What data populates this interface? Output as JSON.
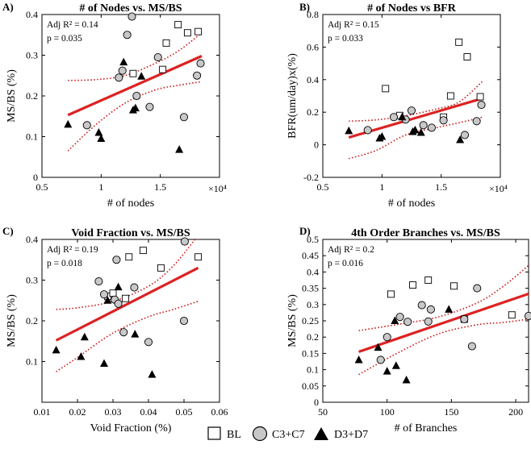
{
  "legend": {
    "items": [
      {
        "key": "BL",
        "label": "BL",
        "shape": "square",
        "fill": "#ffffff"
      },
      {
        "key": "C3C7",
        "label": "C3+C7",
        "shape": "circle",
        "fill": "#c8c8c8"
      },
      {
        "key": "D3D7",
        "label": "D3+D7",
        "shape": "triangle",
        "fill": "#000000"
      }
    ]
  },
  "colors": {
    "fit": "#dd2222",
    "ci": "#cc1111",
    "axis": "#000000"
  },
  "chart_data": [
    {
      "id": "A",
      "letter": "A)",
      "type": "scatter",
      "title": "# of Nodes vs. MS/BS",
      "xlabel": "# of nodes",
      "ylabel": "MS/BS (%)",
      "x_multiplier": "×10⁴",
      "xlim": [
        0.5,
        2.0
      ],
      "ylim": [
        0.0,
        0.4
      ],
      "xticks": [
        0.5,
        1.0,
        1.5
      ],
      "xtick_labels": [
        "0.5",
        "1",
        "1.5"
      ],
      "yticks": [
        0.0,
        0.1,
        0.2,
        0.3,
        0.4
      ],
      "ytick_labels": [
        "0",
        "0.1",
        "0.2",
        "0.3",
        "0.4"
      ],
      "stats": {
        "r2": "Adj R² = 0.14",
        "p": "p = 0.035"
      },
      "fit": {
        "x": [
          0.72,
          1.85
        ],
        "y": [
          0.153,
          0.298
        ]
      },
      "ci_upper": {
        "x": [
          0.72,
          0.95,
          1.2,
          1.45,
          1.65,
          1.85
        ],
        "y": [
          0.238,
          0.24,
          0.25,
          0.279,
          0.31,
          0.355
        ]
      },
      "ci_lower": {
        "x": [
          0.72,
          0.95,
          1.2,
          1.45,
          1.65,
          1.85
        ],
        "y": [
          0.065,
          0.128,
          0.182,
          0.214,
          0.226,
          0.235
        ]
      },
      "series": [
        {
          "name": "BL",
          "x": [
            1.27,
            1.52,
            1.55,
            1.65,
            1.73,
            1.82
          ],
          "y": [
            0.255,
            0.265,
            0.33,
            0.375,
            0.355,
            0.358
          ]
        },
        {
          "name": "C3+C7",
          "x": [
            0.88,
            1.15,
            1.18,
            1.22,
            1.26,
            1.3,
            1.41,
            1.48,
            1.7,
            1.81,
            1.84
          ],
          "y": [
            0.128,
            0.245,
            0.262,
            0.35,
            0.395,
            0.2,
            0.173,
            0.295,
            0.148,
            0.25,
            0.28
          ]
        },
        {
          "name": "D3+D7",
          "x": [
            0.72,
            0.98,
            1.0,
            1.19,
            1.27,
            1.29,
            1.34,
            1.66
          ],
          "y": [
            0.13,
            0.11,
            0.095,
            0.283,
            0.165,
            0.17,
            0.248,
            0.068
          ]
        }
      ]
    },
    {
      "id": "B",
      "letter": "B)",
      "type": "scatter",
      "title": "# of Nodes vs BFR",
      "xlabel": "# of nodes",
      "ylabel": "BFR(um/day)x(%)",
      "x_multiplier": "×10⁴",
      "xlim": [
        0.5,
        2.0
      ],
      "ylim": [
        -0.2,
        0.8
      ],
      "xticks": [
        0.5,
        1.0,
        1.5
      ],
      "xtick_labels": [
        "0.5",
        "1",
        "1.5"
      ],
      "yticks": [
        -0.2,
        0.0,
        0.2,
        0.4,
        0.6,
        0.8
      ],
      "ytick_labels": [
        "-0.2",
        "0",
        "0.2",
        "0.4",
        "0.6",
        "0.8"
      ],
      "stats": {
        "r2": "Adj R² = 0.15",
        "p": "p = 0.033"
      },
      "fit": {
        "x": [
          0.72,
          1.85
        ],
        "y": [
          0.045,
          0.285
        ]
      },
      "ci_upper": {
        "x": [
          0.72,
          0.95,
          1.2,
          1.45,
          1.65,
          1.85
        ],
        "y": [
          0.145,
          0.153,
          0.178,
          0.218,
          0.262,
          0.39
        ]
      },
      "ci_lower": {
        "x": [
          0.72,
          0.95,
          1.2,
          1.45,
          1.65,
          1.85
        ],
        "y": [
          -0.085,
          -0.035,
          0.06,
          0.104,
          0.135,
          0.17
        ]
      },
      "series": [
        {
          "name": "BL",
          "x": [
            1.03,
            1.15,
            1.52,
            1.58,
            1.65,
            1.72,
            1.83
          ],
          "y": [
            0.345,
            0.18,
            0.17,
            0.3,
            0.63,
            0.54,
            0.295
          ]
        },
        {
          "name": "C3+C7",
          "x": [
            0.88,
            1.1,
            1.2,
            1.25,
            1.35,
            1.42,
            1.52,
            1.7,
            1.8,
            1.84
          ],
          "y": [
            0.09,
            0.17,
            0.155,
            0.21,
            0.12,
            0.105,
            0.15,
            0.06,
            0.145,
            0.245
          ]
        },
        {
          "name": "D3+D7",
          "x": [
            0.72,
            0.98,
            1.0,
            1.17,
            1.26,
            1.28,
            1.33,
            1.66
          ],
          "y": [
            0.085,
            0.04,
            0.05,
            0.17,
            0.08,
            0.09,
            0.075,
            0.03
          ]
        }
      ]
    },
    {
      "id": "C",
      "letter": "C)",
      "type": "scatter",
      "title": "Void Fraction vs. MS/BS",
      "xlabel": "Void Fraction (%)",
      "ylabel": "MS/BS (%)",
      "x_multiplier": "",
      "xlim": [
        0.01,
        0.06
      ],
      "ylim": [
        0.0,
        0.4
      ],
      "xticks": [
        0.01,
        0.02,
        0.03,
        0.04,
        0.05,
        0.06
      ],
      "xtick_labels": [
        "0.01",
        "0.02",
        "0.03",
        "0.04",
        "0.05",
        "0.06"
      ],
      "yticks": [
        0.1,
        0.2,
        0.3,
        0.4
      ],
      "ytick_labels": [
        "0.1",
        "0.2",
        "0.3",
        "0.4"
      ],
      "stats": {
        "r2": "Adj R² = 0.19",
        "p": "p = 0.018"
      },
      "fit": {
        "x": [
          0.014,
          0.054
        ],
        "y": [
          0.152,
          0.33
        ]
      },
      "ci_upper": {
        "x": [
          0.014,
          0.02,
          0.03,
          0.04,
          0.047,
          0.054
        ],
        "y": [
          0.228,
          0.232,
          0.248,
          0.285,
          0.335,
          0.41
        ]
      },
      "ci_lower": {
        "x": [
          0.014,
          0.02,
          0.03,
          0.04,
          0.047,
          0.054
        ],
        "y": [
          0.075,
          0.11,
          0.17,
          0.21,
          0.228,
          0.248
        ]
      },
      "series": [
        {
          "name": "BL",
          "x": [
            0.0285,
            0.03,
            0.0335,
            0.0345,
            0.0385,
            0.0435,
            0.054
          ],
          "y": [
            0.26,
            0.268,
            0.255,
            0.357,
            0.373,
            0.33,
            0.357
          ]
        },
        {
          "name": "C3+C7",
          "x": [
            0.026,
            0.0275,
            0.0305,
            0.031,
            0.0315,
            0.033,
            0.036,
            0.04,
            0.05,
            0.0502
          ],
          "y": [
            0.297,
            0.265,
            0.252,
            0.35,
            0.242,
            0.172,
            0.282,
            0.148,
            0.2,
            0.395
          ]
        },
        {
          "name": "D3+D7",
          "x": [
            0.014,
            0.021,
            0.022,
            0.0275,
            0.0285,
            0.0315,
            0.0362,
            0.041
          ],
          "y": [
            0.128,
            0.112,
            0.16,
            0.095,
            0.25,
            0.283,
            0.167,
            0.068
          ]
        }
      ]
    },
    {
      "id": "D",
      "letter": "D)",
      "type": "scatter",
      "title": "4th Order Branches vs. MS/BS",
      "xlabel": "# of Branches",
      "ylabel": "MS/BS (%)",
      "x_multiplier": "",
      "xlim": [
        50,
        210
      ],
      "ylim": [
        0.0,
        0.5
      ],
      "xticks": [
        50,
        100,
        150,
        200
      ],
      "xtick_labels": [
        "50",
        "100",
        "150",
        "200"
      ],
      "yticks": [
        0.0,
        0.05,
        0.1,
        0.15,
        0.2,
        0.25,
        0.3,
        0.35,
        0.4,
        0.45,
        0.5
      ],
      "ytick_labels": [
        "0",
        "0.05",
        "0.1",
        "0.15",
        "0.2",
        "0.25",
        "0.3",
        "0.35",
        "0.4",
        "0.45",
        "0.5"
      ],
      "stats": {
        "r2": "Adj R² = 0.2",
        "p": "p = 0.016"
      },
      "fit": {
        "x": [
          78,
          210
        ],
        "y": [
          0.155,
          0.333
        ]
      },
      "ci_upper": {
        "x": [
          78,
          110,
          140,
          170,
          190,
          210
        ],
        "y": [
          0.22,
          0.24,
          0.262,
          0.305,
          0.355,
          0.42
        ]
      },
      "ci_lower": {
        "x": [
          78,
          110,
          140,
          170,
          190,
          210
        ],
        "y": [
          0.085,
          0.155,
          0.21,
          0.238,
          0.245,
          0.255
        ]
      },
      "series": [
        {
          "name": "BL",
          "x": [
            103,
            120,
            132,
            152,
            160,
            197
          ],
          "y": [
            0.332,
            0.36,
            0.375,
            0.357,
            0.255,
            0.268
          ]
        },
        {
          "name": "C3+C7",
          "x": [
            95,
            100,
            110,
            116,
            127,
            132,
            134,
            160,
            166,
            170,
            210
          ],
          "y": [
            0.13,
            0.2,
            0.262,
            0.247,
            0.298,
            0.248,
            0.285,
            0.255,
            0.172,
            0.35,
            0.265
          ]
        },
        {
          "name": "D3+D7",
          "x": [
            78,
            93,
            100,
            106,
            107,
            115,
            148
          ],
          "y": [
            0.13,
            0.168,
            0.095,
            0.25,
            0.112,
            0.068,
            0.285
          ]
        }
      ]
    }
  ]
}
